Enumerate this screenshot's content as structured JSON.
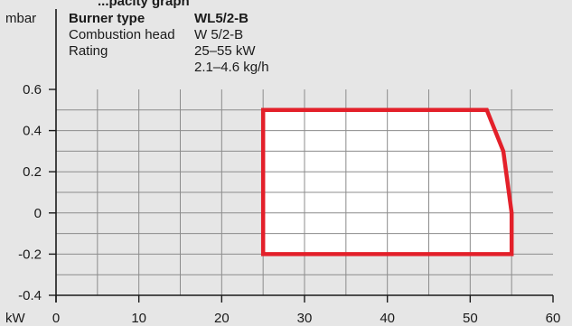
{
  "chart_data": {
    "type": "area",
    "heading_partial": "...pacity graph",
    "y_unit": "mbar",
    "x_unit": "kW",
    "xlim": [
      0,
      60
    ],
    "ylim": [
      -0.4,
      0.6
    ],
    "x_ticks": [
      0,
      10,
      20,
      30,
      40,
      50,
      60
    ],
    "y_ticks": [
      0.6,
      0.4,
      0.2,
      0,
      -0.2,
      -0.4
    ],
    "y_tick_labels": [
      "0.6",
      "0.4",
      "0.2",
      "0",
      "-0.2",
      "-0.4"
    ],
    "grid": true,
    "info": [
      {
        "label": "Burner type",
        "value": "WL5/2-B",
        "bold": true
      },
      {
        "label": "Combustion head",
        "value": "W 5/2-B",
        "bold": false
      },
      {
        "label": "Rating",
        "value": "25–55 kW",
        "bold": false
      },
      {
        "label": "",
        "value": "2.1–4.6 kg/h",
        "bold": false
      }
    ],
    "series": [
      {
        "points": [
          [
            25,
            0.5
          ],
          [
            52,
            0.5
          ],
          [
            54,
            0.3
          ],
          [
            55,
            0
          ],
          [
            55,
            -0.2
          ],
          [
            25,
            -0.2
          ]
        ]
      }
    ],
    "colors": {
      "background": "#e6e6e6",
      "area_fill": "#ffffff",
      "area_stroke": "#e3202a",
      "grid": "#8c8c8c",
      "axis": "#1a1a1a"
    }
  }
}
